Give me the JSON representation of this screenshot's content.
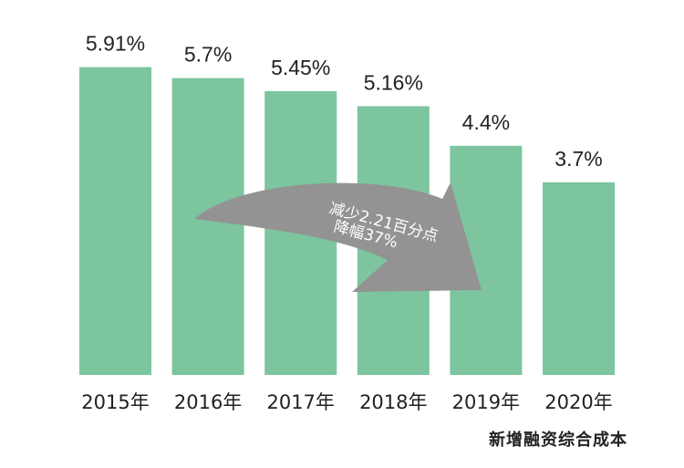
{
  "chart_data": {
    "type": "bar",
    "categories": [
      "2015年",
      "2016年",
      "2017年",
      "2018年",
      "2019年",
      "2020年"
    ],
    "values": [
      5.91,
      5.7,
      5.45,
      5.16,
      4.4,
      3.7
    ],
    "value_labels": [
      "5.91%",
      "5.7%",
      "5.45%",
      "5.16%",
      "4.4%",
      "3.7%"
    ],
    "caption": "新增融资综合成本",
    "ylim": [
      0,
      7.2
    ],
    "grid": false,
    "annotation": {
      "line1": "减少2.21百分点",
      "line2": "降幅37%"
    },
    "colors": {
      "bar": "#7cc59f",
      "arrow": "#939393"
    }
  }
}
